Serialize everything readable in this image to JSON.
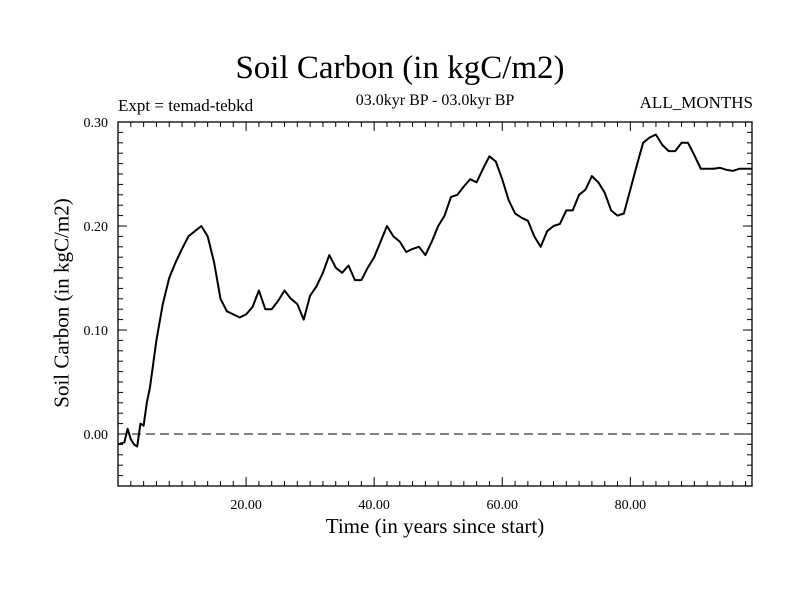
{
  "chart_data": {
    "type": "line",
    "title": "Soil Carbon (in kgC/m2)",
    "subtitle": "03.0kyr BP - 03.0kyr BP",
    "experiment": "Expt = temad-tebkd",
    "period": "ALL_MONTHS",
    "xlabel": "Time (in years since start)",
    "ylabel": "Soil Carbon (in kgC/m2)",
    "xlim": [
      0,
      99
    ],
    "ylim": [
      -0.05,
      0.3
    ],
    "xticks": [
      20,
      40,
      60,
      80
    ],
    "xtick_labels": [
      "20.00",
      "40.00",
      "60.00",
      "80.00"
    ],
    "yticks": [
      0.0,
      0.1,
      0.2,
      0.3
    ],
    "ytick_labels": [
      "0.00",
      "0.10",
      "0.20",
      "0.30"
    ],
    "reference_line": {
      "y": 0.0,
      "style": "dashed"
    },
    "series": [
      {
        "name": "Soil Carbon",
        "x": [
          0,
          1,
          1.5,
          2,
          2.5,
          3,
          3.5,
          4,
          4.5,
          5,
          6,
          7,
          8,
          9,
          10,
          11,
          12,
          13,
          13.5,
          14,
          15,
          16,
          17,
          18,
          19,
          20,
          21,
          22,
          23,
          24,
          25,
          26,
          27,
          28,
          29,
          30,
          31,
          32,
          33,
          34,
          35,
          36,
          37,
          38,
          39,
          40,
          41,
          42,
          43,
          44,
          45,
          46,
          47,
          48,
          49,
          50,
          51,
          52,
          53,
          54,
          55,
          56,
          57,
          58,
          59,
          60,
          61,
          62,
          63,
          64,
          65,
          66,
          67,
          68,
          69,
          70,
          71,
          72,
          73,
          74,
          75,
          76,
          77,
          78,
          79,
          80,
          81,
          82,
          83,
          84,
          85,
          86,
          87,
          88,
          89,
          90,
          91,
          92,
          93,
          94,
          95,
          96,
          97,
          98,
          99
        ],
        "values": [
          -0.01,
          -0.008,
          0.005,
          -0.005,
          -0.01,
          -0.012,
          0.01,
          0.008,
          0.03,
          0.045,
          0.09,
          0.125,
          0.15,
          0.165,
          0.178,
          0.19,
          0.195,
          0.2,
          0.195,
          0.19,
          0.165,
          0.13,
          0.118,
          0.115,
          0.112,
          0.115,
          0.122,
          0.138,
          0.12,
          0.12,
          0.128,
          0.138,
          0.13,
          0.125,
          0.11,
          0.133,
          0.142,
          0.155,
          0.172,
          0.16,
          0.155,
          0.162,
          0.148,
          0.148,
          0.16,
          0.17,
          0.185,
          0.2,
          0.19,
          0.185,
          0.175,
          0.178,
          0.18,
          0.172,
          0.185,
          0.2,
          0.21,
          0.228,
          0.23,
          0.238,
          0.245,
          0.242,
          0.255,
          0.267,
          0.262,
          0.245,
          0.225,
          0.212,
          0.208,
          0.205,
          0.19,
          0.18,
          0.195,
          0.2,
          0.202,
          0.215,
          0.215,
          0.23,
          0.235,
          0.248,
          0.242,
          0.232,
          0.215,
          0.21,
          0.212,
          0.235,
          0.258,
          0.28,
          0.285,
          0.288,
          0.278,
          0.272,
          0.272,
          0.28,
          0.28,
          0.268,
          0.255,
          0.255,
          0.255,
          0.256,
          0.254,
          0.253,
          0.255,
          0.255,
          0.255
        ]
      }
    ]
  }
}
